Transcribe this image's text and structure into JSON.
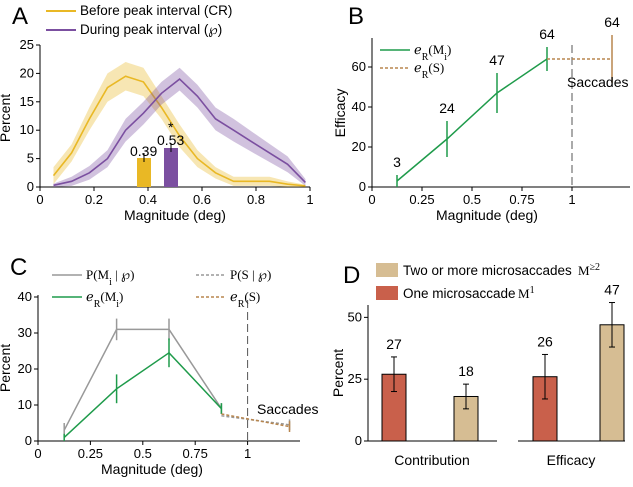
{
  "panels": {
    "A": "A",
    "B": "B",
    "C": "C",
    "D": "D"
  },
  "colors": {
    "before": "#e9b825",
    "during": "#7b4fa0",
    "efficacy": "#1f9b4b",
    "saccade": "#b8864e",
    "prob": "#999999",
    "single": "#c9604b",
    "multi": "#d6bd93"
  },
  "chart_data": [
    {
      "id": "A",
      "type": "line",
      "title": "",
      "xlabel": "Magnitude (deg)",
      "ylabel": "Percent",
      "xlim": [
        0,
        1
      ],
      "ylim": [
        0,
        25
      ],
      "xticks": [
        "0",
        "0.2",
        "0.4",
        "0.6",
        "0.8",
        "1"
      ],
      "yticks": [
        "0",
        "5",
        "10",
        "15",
        "20",
        "25"
      ],
      "legend": [
        "Before peak interval  (CR)",
        "During peak interval (℘)"
      ],
      "series": [
        {
          "name": "Before peak interval  (CR)",
          "x": [
            0.05,
            0.117,
            0.183,
            0.25,
            0.317,
            0.383,
            0.45,
            0.517,
            0.583,
            0.65,
            0.717,
            0.783,
            0.85,
            0.917,
            0.983
          ],
          "values": [
            2,
            6,
            12,
            17.5,
            19.5,
            18.5,
            14,
            9,
            5,
            2.5,
            1,
            1,
            1,
            0.5,
            0.2
          ],
          "band": [
            1.5,
            1.5,
            2,
            2.5,
            2.5,
            2.5,
            2,
            2,
            1.5,
            1,
            0.8,
            0.8,
            0.8,
            0.5,
            0.2
          ]
        },
        {
          "name": "During peak interval (℘)",
          "x": [
            0.05,
            0.117,
            0.183,
            0.25,
            0.317,
            0.383,
            0.45,
            0.517,
            0.583,
            0.65,
            0.717,
            0.783,
            0.85,
            0.917,
            0.983
          ],
          "values": [
            0.3,
            1,
            2.5,
            5,
            10,
            13,
            16.5,
            19,
            16,
            12,
            10,
            8,
            6,
            4,
            0.8
          ],
          "band": [
            0.3,
            0.8,
            1.2,
            1.5,
            2,
            2,
            2,
            2,
            2,
            2,
            2,
            1.8,
            1.6,
            1.4,
            0.6
          ]
        }
      ],
      "inset_bars": [
        {
          "label": "0.39",
          "value": 0.39,
          "color_key": "before"
        },
        {
          "label": "0.53",
          "value": 0.53,
          "color_key": "during",
          "marker": "*"
        }
      ]
    },
    {
      "id": "B",
      "type": "line",
      "title": "",
      "xlabel": "Magnitude (deg)",
      "ylabel": "Efficacy",
      "xlim": [
        0,
        1.25
      ],
      "ylim": [
        0,
        75
      ],
      "xticks": [
        "0",
        "0.25",
        "0.5",
        "0.75",
        "1"
      ],
      "yticks": [
        "0",
        "20",
        "40",
        "60"
      ],
      "legend": [
        "ℯ_R(M_i)",
        "ℯ_R(S)"
      ],
      "series": [
        {
          "name": "ℯ_R(M_i)",
          "x": [
            0.125,
            0.375,
            0.625,
            0.875
          ],
          "values": [
            3,
            24,
            47,
            64
          ],
          "err": [
            3,
            9,
            10,
            6
          ],
          "labels": [
            "3",
            "24",
            "47",
            "64"
          ]
        },
        {
          "name": "ℯ_R(S)",
          "x": [
            0.875,
            1.2
          ],
          "values": [
            64,
            64
          ],
          "err": [
            0,
            12
          ],
          "labels": [
            "",
            "64"
          ]
        }
      ],
      "annotation": "Saccades",
      "divider_x": 1
    },
    {
      "id": "C",
      "type": "line",
      "title": "",
      "xlabel": "Magnitude (deg)",
      "ylabel": "Percent",
      "xlim": [
        0,
        1.25
      ],
      "ylim": [
        0,
        40
      ],
      "xticks": [
        "0",
        "0.25",
        "0.5",
        "0.75",
        "1"
      ],
      "yticks": [
        "0",
        "10",
        "20",
        "30",
        "40"
      ],
      "legend": [
        "P(M_i | ℘)",
        "ℯ_R(M_i)",
        "P(S | ℘)",
        "ℯ_R(S)"
      ],
      "series": [
        {
          "name": "P(M_i | ℘)",
          "x": [
            0.125,
            0.375,
            0.625,
            0.875
          ],
          "values": [
            3,
            31,
            31,
            9
          ],
          "err": [
            2,
            3,
            3,
            1.5
          ]
        },
        {
          "name": "ℯ_R(M_i)",
          "x": [
            0.125,
            0.375,
            0.625,
            0.875
          ],
          "values": [
            1,
            14.5,
            24.5,
            9
          ],
          "err": [
            1,
            4,
            4,
            1.5
          ]
        },
        {
          "name": "P(S | ℘)",
          "x": [
            0.875,
            1.2
          ],
          "values": [
            7,
            4.5
          ],
          "err": [
            0,
            1.5
          ]
        },
        {
          "name": "ℯ_R(S)",
          "x": [
            0.875,
            1.2
          ],
          "values": [
            7.5,
            4
          ],
          "err": [
            0,
            1.5
          ]
        }
      ],
      "annotation": "Saccades",
      "divider_x": 1
    },
    {
      "id": "D",
      "type": "bar",
      "title": "",
      "xlabel": "",
      "ylabel": "Percent",
      "ylim": [
        0,
        55
      ],
      "yticks": [
        "0",
        "25",
        "50"
      ],
      "categories": [
        "Contribution",
        "Efficacy"
      ],
      "legend": [
        "Two or more microsaccades M≥2",
        "One microsaccade M1"
      ],
      "series": [
        {
          "name": "One microsaccade M1",
          "values": [
            27,
            26
          ],
          "err": [
            7,
            9
          ],
          "color_key": "single"
        },
        {
          "name": "Two or more microsaccades M≥2",
          "values": [
            18,
            47
          ],
          "err": [
            5,
            9
          ],
          "color_key": "multi"
        }
      ]
    }
  ],
  "text": {
    "legendA1": "Before peak interval  (CR)",
    "legendA2": "During peak interval (℘)",
    "insetA1": "0.39",
    "insetA2": "0.53",
    "insetStar": "*",
    "saccadesB": "Saccades",
    "saccadesC": "Saccades",
    "legendD1": "Two or more microsaccades",
    "legendD2": "One microsaccade",
    "catD1": "Contribution",
    "catD2": "Efficacy"
  }
}
